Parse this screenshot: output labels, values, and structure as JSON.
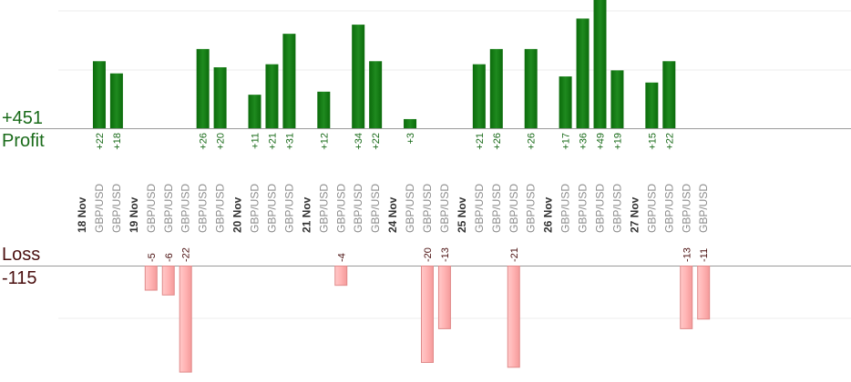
{
  "chart_data": {
    "type": "bar",
    "profit_label": "Profit",
    "loss_label": "Loss",
    "profit_total": "+451",
    "loss_total": "-115",
    "colors": {
      "profit_bar": "#0b6b0b",
      "profit_bar_light": "#1f8a1f",
      "profit_text": "#1a6b1a",
      "loss_bar": "#ffb3b3",
      "loss_border": "#e08a8a",
      "loss_text": "#4a0f0f",
      "symbol_text": "#8c8c8c",
      "date_text": "#333333",
      "grid": "#eeeeee",
      "axis": "#999999"
    },
    "entries": [
      {
        "kind": "date",
        "label": "18 Nov"
      },
      {
        "kind": "trade",
        "symbol": "GBP/USD",
        "value": 22,
        "label": "+22"
      },
      {
        "kind": "trade",
        "symbol": "GBP/USD",
        "value": 18,
        "label": "+18"
      },
      {
        "kind": "date",
        "label": "19 Nov"
      },
      {
        "kind": "trade",
        "symbol": "GBP/USD",
        "value": -5,
        "label": "-5"
      },
      {
        "kind": "trade",
        "symbol": "GBP/USD",
        "value": -6,
        "label": "-6"
      },
      {
        "kind": "trade",
        "symbol": "GBP/USD",
        "value": -22,
        "label": "-22"
      },
      {
        "kind": "trade",
        "symbol": "GBP/USD",
        "value": 26,
        "label": "+26"
      },
      {
        "kind": "trade",
        "symbol": "GBP/USD",
        "value": 20,
        "label": "+20"
      },
      {
        "kind": "date",
        "label": "20 Nov"
      },
      {
        "kind": "trade",
        "symbol": "GBP/USD",
        "value": 11,
        "label": "+11"
      },
      {
        "kind": "trade",
        "symbol": "GBP/USD",
        "value": 21,
        "label": "+21"
      },
      {
        "kind": "trade",
        "symbol": "GBP/USD",
        "value": 31,
        "label": "+31"
      },
      {
        "kind": "date",
        "label": "21 Nov"
      },
      {
        "kind": "trade",
        "symbol": "GBP/USD",
        "value": 12,
        "label": "+12"
      },
      {
        "kind": "trade",
        "symbol": "GBP/USD",
        "value": -4,
        "label": "-4"
      },
      {
        "kind": "trade",
        "symbol": "GBP/USD",
        "value": 34,
        "label": "+34"
      },
      {
        "kind": "trade",
        "symbol": "GBP/USD",
        "value": 22,
        "label": "+22"
      },
      {
        "kind": "date",
        "label": "24 Nov"
      },
      {
        "kind": "trade",
        "symbol": "GBP/USD",
        "value": 3,
        "label": "+3"
      },
      {
        "kind": "trade",
        "symbol": "GBP/USD",
        "value": -20,
        "label": "-20"
      },
      {
        "kind": "trade",
        "symbol": "GBP/USD",
        "value": -13,
        "label": "-13"
      },
      {
        "kind": "date",
        "label": "25 Nov"
      },
      {
        "kind": "trade",
        "symbol": "GBP/USD",
        "value": 21,
        "label": "+21"
      },
      {
        "kind": "trade",
        "symbol": "GBP/USD",
        "value": 26,
        "label": "+26"
      },
      {
        "kind": "trade",
        "symbol": "GBP/USD",
        "value": -21,
        "label": "-21"
      },
      {
        "kind": "trade",
        "symbol": "GBP/USD",
        "value": 26,
        "label": "+26"
      },
      {
        "kind": "date",
        "label": "26 Nov"
      },
      {
        "kind": "trade",
        "symbol": "GBP/USD",
        "value": 17,
        "label": "+17"
      },
      {
        "kind": "trade",
        "symbol": "GBP/USD",
        "value": 36,
        "label": "+36"
      },
      {
        "kind": "trade",
        "symbol": "GBP/USD",
        "value": 49,
        "label": "+49"
      },
      {
        "kind": "trade",
        "symbol": "GBP/USD",
        "value": 19,
        "label": "+19"
      },
      {
        "kind": "date",
        "label": "27 Nov"
      },
      {
        "kind": "trade",
        "symbol": "GBP/USD",
        "value": 15,
        "label": "+15"
      },
      {
        "kind": "trade",
        "symbol": "GBP/USD",
        "value": 22,
        "label": "+22"
      },
      {
        "kind": "trade",
        "symbol": "GBP/USD",
        "value": -13,
        "label": "-13"
      },
      {
        "kind": "trade",
        "symbol": "GBP/USD",
        "value": -11,
        "label": "-11"
      }
    ]
  }
}
